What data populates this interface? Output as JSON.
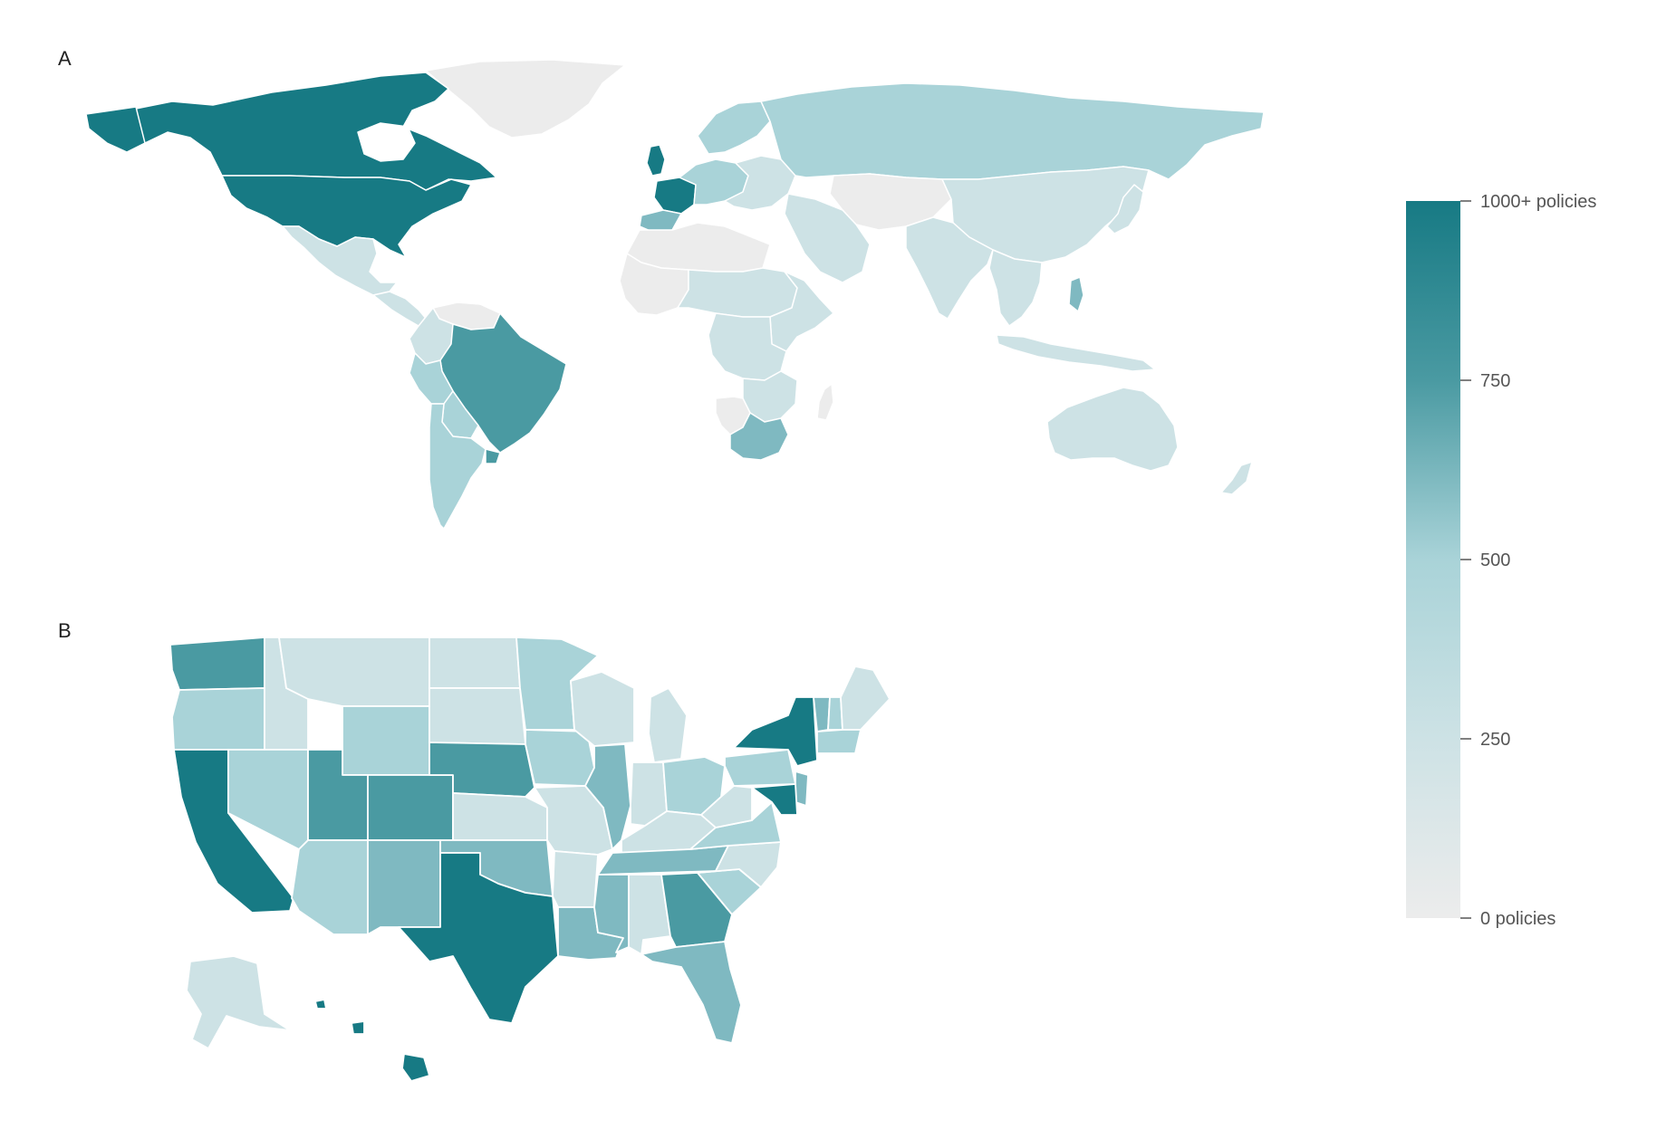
{
  "panels": {
    "a_label": "A",
    "b_label": "B"
  },
  "legend": {
    "ticks": [
      {
        "value": 1000,
        "label": "1000+ policies"
      },
      {
        "value": 750,
        "label": "750"
      },
      {
        "value": 500,
        "label": "500"
      },
      {
        "value": 250,
        "label": "250"
      },
      {
        "value": 0,
        "label": "0 policies"
      }
    ],
    "min": 0,
    "max": 1000
  },
  "colors": {
    "c0": "#ececec",
    "c1": "#cde2e5",
    "c2": "#a9d3d8",
    "c3": "#7fb9c1",
    "c4": "#4a9aa2",
    "c5": "#177a84",
    "border": "#ffffff"
  },
  "world": {
    "regions": [
      {
        "id": "greenland",
        "level": 0
      },
      {
        "id": "canada",
        "level": 5
      },
      {
        "id": "usa",
        "level": 5
      },
      {
        "id": "alaska-world",
        "level": 5
      },
      {
        "id": "mexico",
        "level": 1
      },
      {
        "id": "central-america",
        "level": 1
      },
      {
        "id": "venezuela",
        "level": 0
      },
      {
        "id": "colombia",
        "level": 1
      },
      {
        "id": "brazil",
        "level": 4
      },
      {
        "id": "peru",
        "level": 2
      },
      {
        "id": "bolivia",
        "level": 2
      },
      {
        "id": "argentina",
        "level": 2
      },
      {
        "id": "uruguay",
        "level": 4
      },
      {
        "id": "western-europe",
        "level": 2
      },
      {
        "id": "france",
        "level": 5
      },
      {
        "id": "uk",
        "level": 5
      },
      {
        "id": "spain",
        "level": 3
      },
      {
        "id": "scandinavia",
        "level": 2
      },
      {
        "id": "eastern-europe",
        "level": 1
      },
      {
        "id": "russia",
        "level": 2
      },
      {
        "id": "central-asia",
        "level": 0
      },
      {
        "id": "china",
        "level": 1
      },
      {
        "id": "india",
        "level": 1
      },
      {
        "id": "middle-east",
        "level": 1
      },
      {
        "id": "north-africa",
        "level": 0
      },
      {
        "id": "sahel",
        "level": 1
      },
      {
        "id": "west-africa",
        "level": 0
      },
      {
        "id": "central-africa",
        "level": 1
      },
      {
        "id": "east-africa",
        "level": 1
      },
      {
        "id": "southern-africa",
        "level": 1
      },
      {
        "id": "namibia",
        "level": 0
      },
      {
        "id": "south-africa",
        "level": 3
      },
      {
        "id": "madagascar",
        "level": 0
      },
      {
        "id": "southeast-asia",
        "level": 1
      },
      {
        "id": "philippines",
        "level": 3
      },
      {
        "id": "japan",
        "level": 1
      },
      {
        "id": "indonesia",
        "level": 1
      },
      {
        "id": "australia",
        "level": 1
      },
      {
        "id": "new-zealand",
        "level": 1
      }
    ]
  },
  "us": {
    "states": [
      {
        "id": "WA",
        "level": 4
      },
      {
        "id": "OR",
        "level": 2
      },
      {
        "id": "CA",
        "level": 5
      },
      {
        "id": "ID",
        "level": 1
      },
      {
        "id": "NV",
        "level": 2
      },
      {
        "id": "MT",
        "level": 1
      },
      {
        "id": "WY",
        "level": 2
      },
      {
        "id": "UT",
        "level": 4
      },
      {
        "id": "AZ",
        "level": 2
      },
      {
        "id": "CO",
        "level": 4
      },
      {
        "id": "NM",
        "level": 3
      },
      {
        "id": "ND",
        "level": 1
      },
      {
        "id": "SD",
        "level": 1
      },
      {
        "id": "NE",
        "level": 4
      },
      {
        "id": "KS",
        "level": 1
      },
      {
        "id": "OK",
        "level": 3
      },
      {
        "id": "TX",
        "level": 5
      },
      {
        "id": "MN",
        "level": 2
      },
      {
        "id": "IA",
        "level": 2
      },
      {
        "id": "MO",
        "level": 1
      },
      {
        "id": "AR",
        "level": 1
      },
      {
        "id": "LA",
        "level": 3
      },
      {
        "id": "WI",
        "level": 1
      },
      {
        "id": "IL",
        "level": 3
      },
      {
        "id": "MI",
        "level": 1
      },
      {
        "id": "IN",
        "level": 1
      },
      {
        "id": "OH",
        "level": 2
      },
      {
        "id": "KY",
        "level": 1
      },
      {
        "id": "TN",
        "level": 3
      },
      {
        "id": "MS",
        "level": 3
      },
      {
        "id": "AL",
        "level": 1
      },
      {
        "id": "GA",
        "level": 4
      },
      {
        "id": "FL",
        "level": 3
      },
      {
        "id": "SC",
        "level": 2
      },
      {
        "id": "NC",
        "level": 1
      },
      {
        "id": "VA",
        "level": 2
      },
      {
        "id": "WV",
        "level": 1
      },
      {
        "id": "PA",
        "level": 2
      },
      {
        "id": "NY",
        "level": 5
      },
      {
        "id": "VT",
        "level": 3
      },
      {
        "id": "NH",
        "level": 2
      },
      {
        "id": "ME",
        "level": 1
      },
      {
        "id": "MA",
        "level": 2
      },
      {
        "id": "NJ",
        "level": 3
      },
      {
        "id": "MD",
        "level": 5
      },
      {
        "id": "AK",
        "level": 1
      },
      {
        "id": "HI",
        "level": 5
      }
    ]
  }
}
